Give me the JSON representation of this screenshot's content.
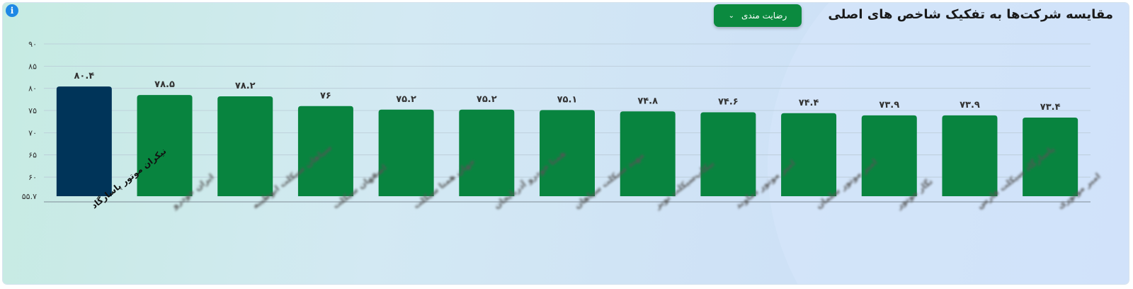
{
  "header": {
    "title": "مقایسه شرکت‌ها به تفکیک شاخص های اصلی",
    "selector_label": "رضایت مندی",
    "info_icon": "info-icon"
  },
  "colors": {
    "highlight_bar": "#003459",
    "bar": "#08843f",
    "selector_bg": "#0b8a3f",
    "info_icon": "#1e88e5"
  },
  "chart_data": {
    "type": "bar",
    "categories": [
      "نیکران موتور پاسارگاد",
      "ایران خودرو",
      "سپاهان سیکلت ابوطیبه",
      "اصفهان سیکلت",
      "جهان همتا سیکلت",
      "همتا خودرو آذربایجان",
      "مهند سیکلت سپاهان",
      "بیکاپ‌سیکلت تویز",
      "امیر موتور دماوند",
      "امیر موتور سلمان",
      "نگار موتور",
      "پاسارگاد سیکلت فارس",
      "امیر موتوری"
    ],
    "values": [
      80.4,
      78.5,
      78.2,
      76,
      75.2,
      75.2,
      75.1,
      74.8,
      74.6,
      74.4,
      73.9,
      73.9,
      73.4
    ],
    "value_labels": [
      "۸۰.۴",
      "۷۸.۵",
      "۷۸.۲",
      "۷۶",
      "۷۵.۲",
      "۷۵.۲",
      "۷۵.۱",
      "۷۴.۸",
      "۷۴.۶",
      "۷۴.۴",
      "۷۳.۹",
      "۷۳.۹",
      "۷۳.۴"
    ],
    "highlight_index": 0,
    "blurred_categories": true,
    "ylim": [
      55.7,
      90
    ],
    "yticks": [
      55.7,
      60,
      65,
      70,
      75,
      80,
      85,
      90
    ],
    "ytick_labels": [
      "۵۵.۷",
      "۶۰",
      "۶۵",
      "۷۰",
      "۷۵",
      "۸۰",
      "۸۵",
      "۹۰"
    ],
    "grid": true,
    "legend": "none"
  }
}
